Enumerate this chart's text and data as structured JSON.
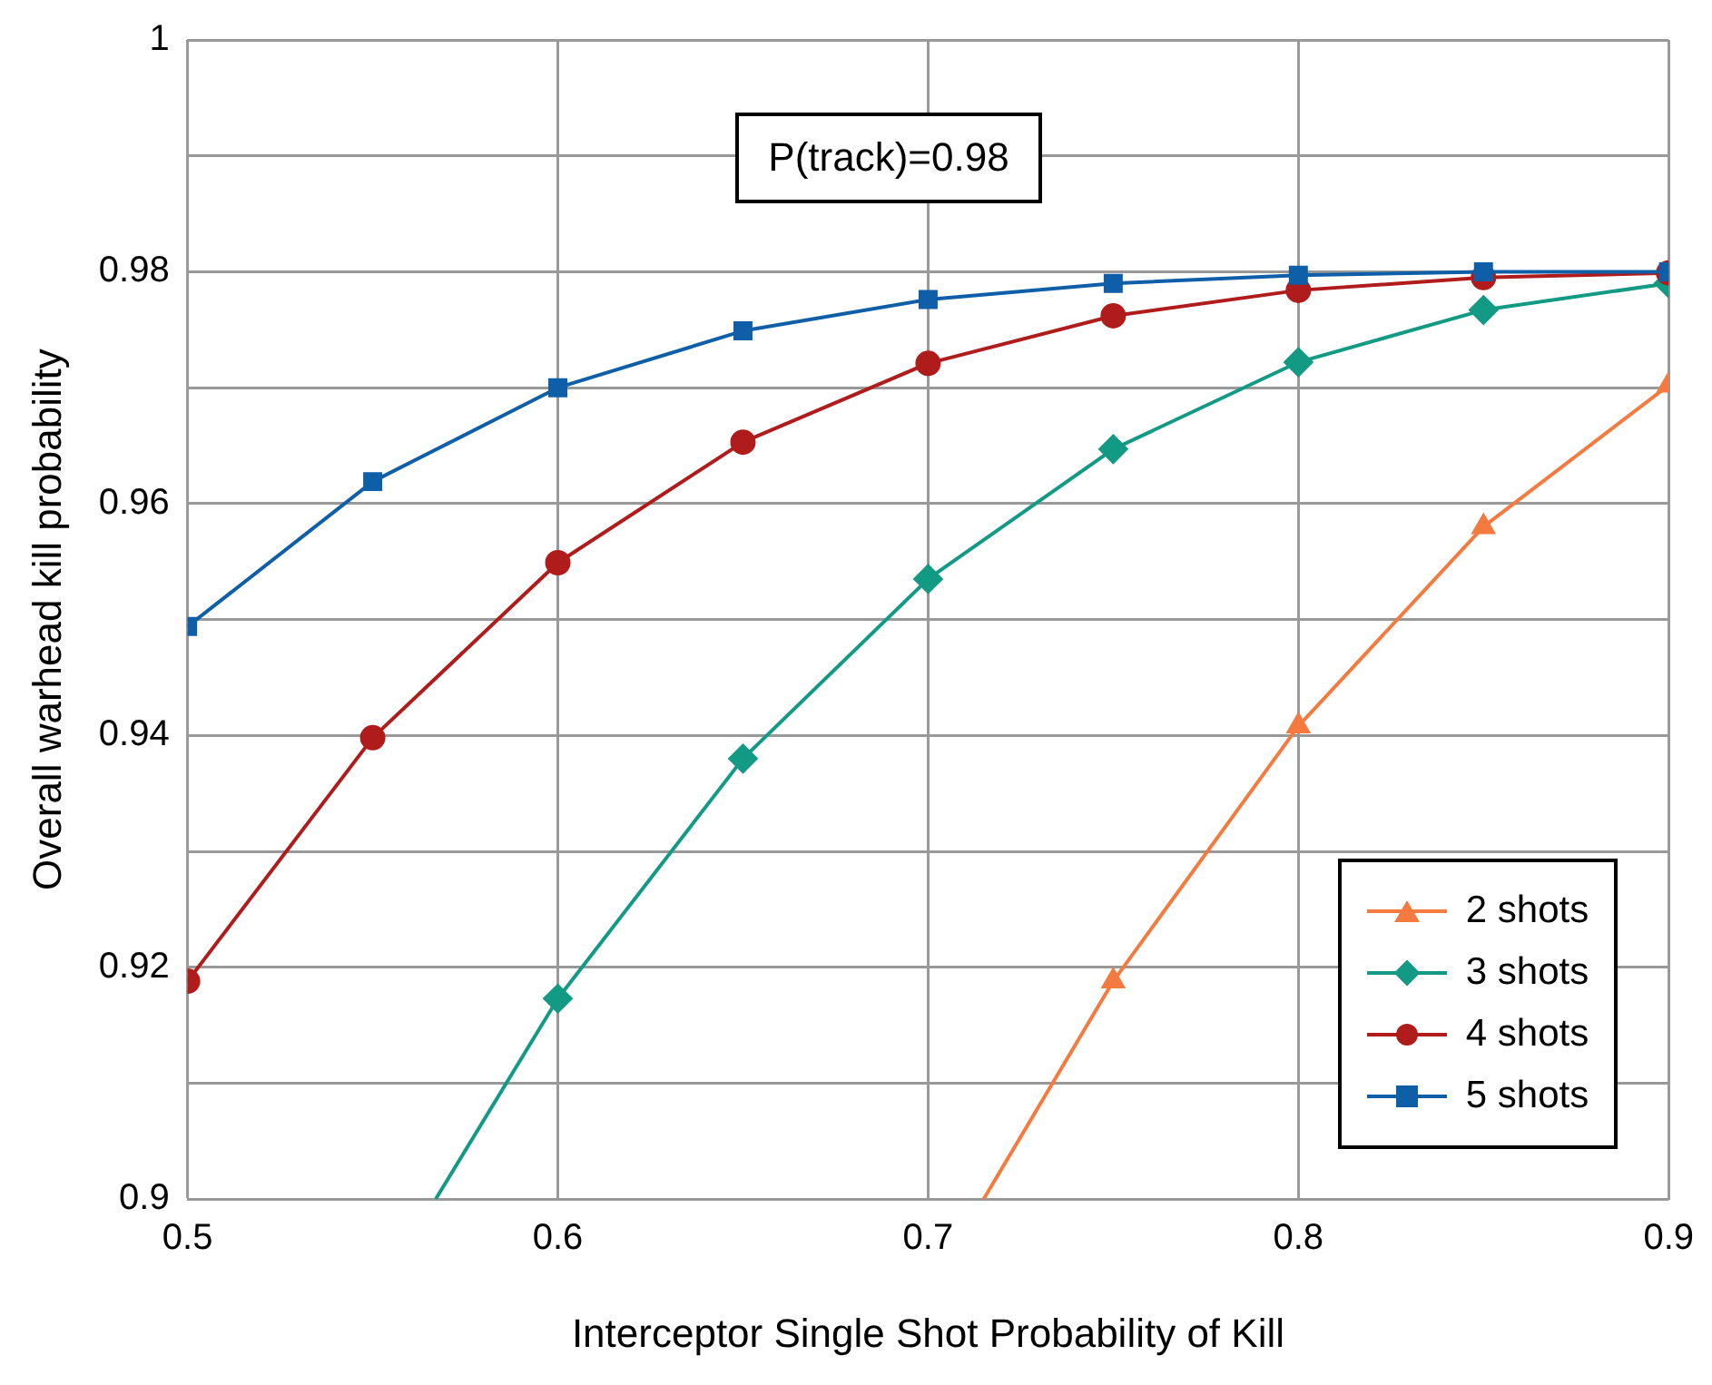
{
  "chart_data": {
    "type": "line",
    "xlabel": "Interceptor Single Shot Probability of Kill",
    "ylabel": "Overall warhead kill probability",
    "annotations": [
      "P(track)=0.98"
    ],
    "x": [
      0.5,
      0.55,
      0.6,
      0.65,
      0.7,
      0.75,
      0.8,
      0.85,
      0.9
    ],
    "xlim": [
      0.5,
      0.9
    ],
    "xticks": [
      0.5,
      0.6,
      0.7,
      0.8,
      0.9
    ],
    "ylim": [
      0.9,
      1
    ],
    "yticks": [
      0.9,
      {
        "value": 0.91,
        "label": null
      },
      0.92,
      {
        "value": 0.93,
        "label": null
      },
      0.94,
      {
        "value": 0.95,
        "label": null
      },
      0.96,
      {
        "value": 0.97,
        "label": null
      },
      0.98,
      {
        "value": 0.99,
        "label": null
      },
      1
    ],
    "grid": true,
    "legend": "bottom right",
    "series": [
      {
        "name": "2 shots",
        "color": "#f47a3f",
        "marker": "triangle",
        "values": [
          null,
          null,
          null,
          null,
          null,
          0.9188,
          0.9408,
          0.958,
          0.9702
        ]
      },
      {
        "color": "#f47a3f",
        "marker": "none",
        "x": [
          0.715,
          0.75
        ],
        "values": [
          0.9,
          0.9188
        ]
      },
      {
        "name": "3 shots",
        "color": "#129a84",
        "marker": "diamond",
        "values": [
          null,
          null,
          0.9173,
          0.938,
          0.9535,
          0.9647,
          0.9722,
          0.9767,
          0.979
        ]
      },
      {
        "color": "#129a84",
        "marker": "none",
        "x": [
          0.567,
          0.6
        ],
        "values": [
          0.9,
          0.9173
        ]
      },
      {
        "name": "4 shots",
        "color": "#b01c1c",
        "marker": "circle",
        "values": [
          0.9188,
          0.9398,
          0.9549,
          0.9653,
          0.9721,
          0.9762,
          0.9784,
          0.9795,
          0.9799
        ]
      },
      {
        "name": "5 shots",
        "color": "#0f5ea8",
        "marker": "square",
        "values": [
          0.9494,
          0.9619,
          0.97,
          0.9749,
          0.9776,
          0.979,
          0.9797,
          0.98,
          0.98
        ]
      }
    ]
  }
}
